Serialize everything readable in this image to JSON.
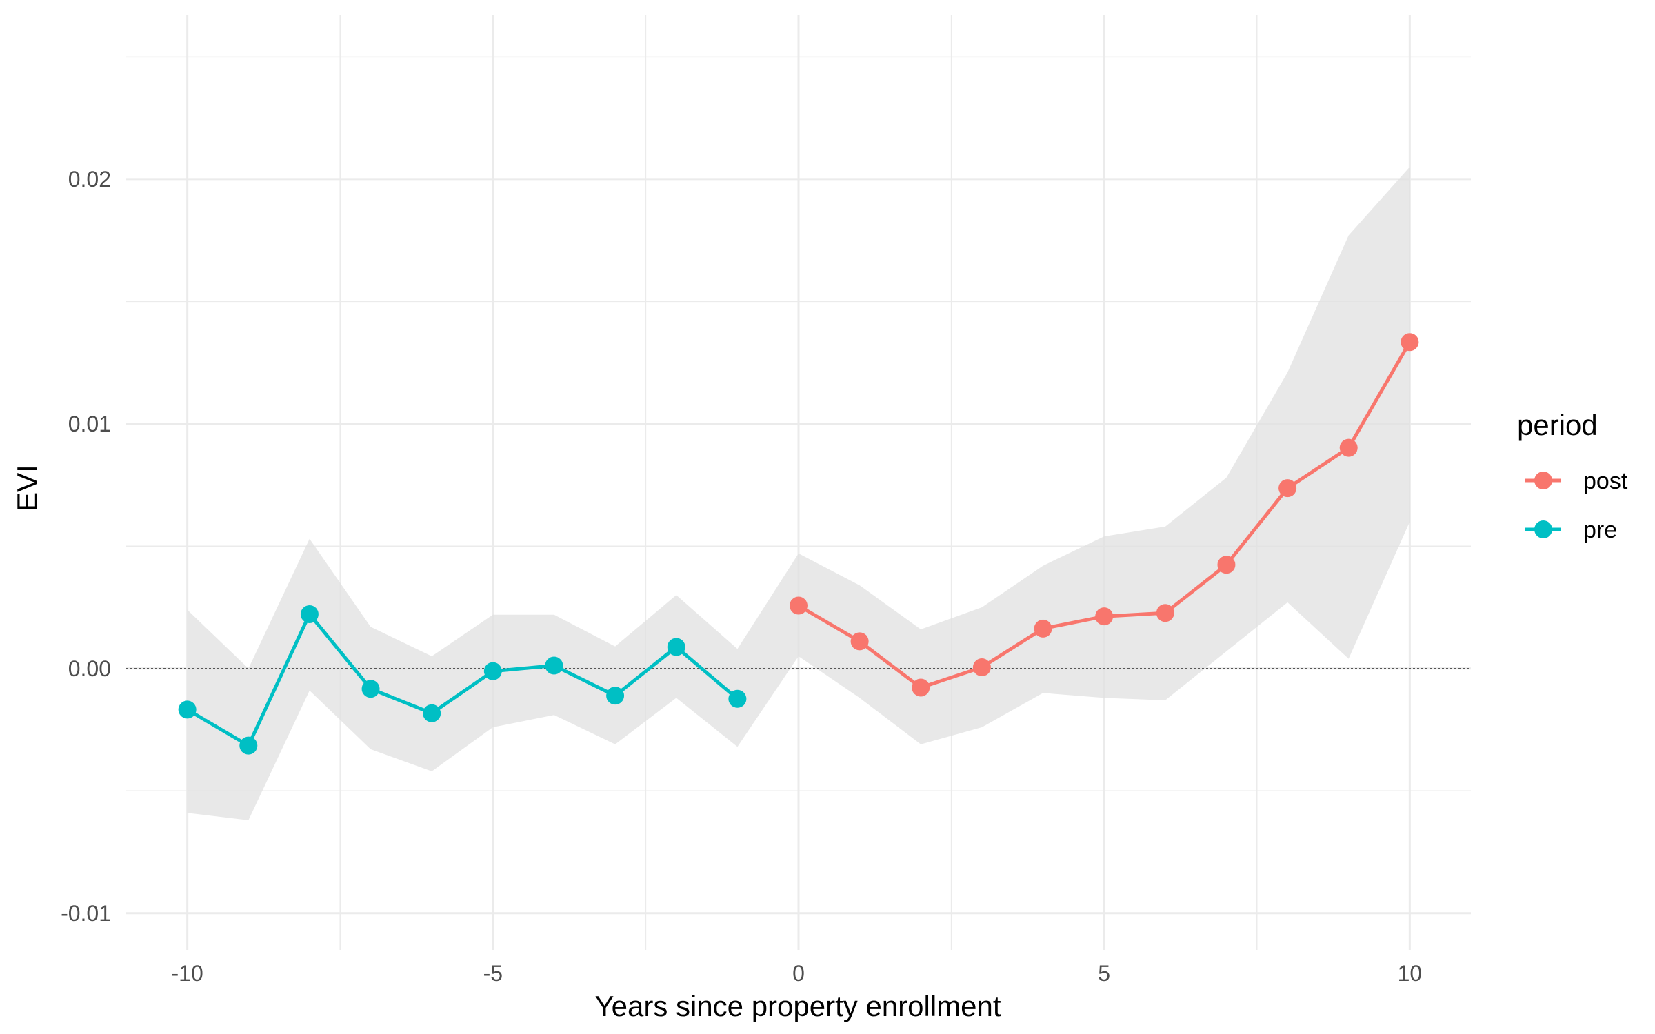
{
  "chart_data": {
    "type": "line",
    "xlabel": "Years since property enrollment",
    "ylabel": "EVI",
    "xlim": [
      -11,
      11
    ],
    "ylim": [
      -0.0115,
      0.0267
    ],
    "x_ticks": [
      -10,
      -5,
      0,
      5,
      10
    ],
    "x_tick_labels": [
      "-10",
      "-5",
      "0",
      "5",
      "10"
    ],
    "y_ticks": [
      -0.01,
      0,
      0.01,
      0.02
    ],
    "y_tick_labels": [
      "-0.01",
      "0.00",
      "0.01",
      "0.02"
    ],
    "grid": true,
    "reference_line": {
      "y": 0,
      "style": "dotted"
    },
    "legend": {
      "title": "period",
      "placement": "right",
      "entries": [
        {
          "label": "post",
          "color": "#F8766D"
        },
        {
          "label": "pre",
          "color": "#00BFC4"
        }
      ]
    },
    "series": [
      {
        "name": "pre",
        "color": "#00BFC4",
        "x": [
          -10,
          -9,
          -8,
          -7,
          -6,
          -5,
          -4,
          -3,
          -2,
          -1
        ],
        "y": [
          -0.00168,
          -0.00315,
          0.00222,
          -0.00083,
          -0.00183,
          -0.00011,
          0.00012,
          -0.00111,
          0.00088,
          -0.00124
        ],
        "ci_low": [
          -0.0059,
          -0.0062,
          -0.0009,
          -0.0033,
          -0.0042,
          -0.0024,
          -0.0019,
          -0.0031,
          -0.0012,
          -0.0032
        ],
        "ci_high": [
          0.0024,
          0.0,
          0.0053,
          0.0017,
          0.0005,
          0.0022,
          0.0022,
          0.0009,
          0.003,
          0.0008
        ]
      },
      {
        "name": "post",
        "color": "#F8766D",
        "x": [
          0,
          1,
          2,
          3,
          4,
          5,
          6,
          7,
          8,
          9,
          10
        ],
        "y": [
          0.00257,
          0.00111,
          -0.00078,
          5e-05,
          0.00163,
          0.00213,
          0.00227,
          0.00424,
          0.00737,
          0.00902,
          0.01334
        ],
        "ci_low": [
          0.0005,
          -0.0012,
          -0.0031,
          -0.0024,
          -0.001,
          -0.0012,
          -0.0013,
          0.0007,
          0.0027,
          0.0004,
          0.006
        ],
        "ci_high": [
          0.0047,
          0.0034,
          0.0016,
          0.0025,
          0.0042,
          0.0054,
          0.0058,
          0.0078,
          0.0121,
          0.0177,
          0.0205
        ]
      }
    ]
  }
}
